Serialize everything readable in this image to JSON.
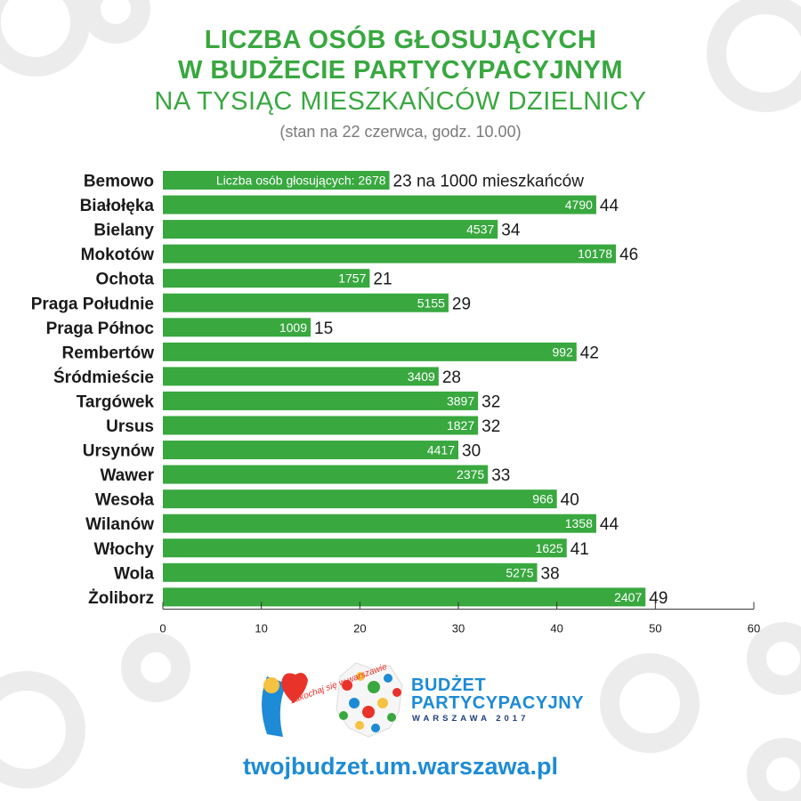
{
  "title": {
    "line1": "LICZBA OSÓB GŁOSUJĄCYCH",
    "line2": "W BUDŻECIE PARTYCYPACYJNYM",
    "line3": "NA TYSIĄC MIESZKAŃCÓW DZIELNICY",
    "subtitle": "(stan na 22 czerwca, godz. 10.00)"
  },
  "colors": {
    "bar": "#38a83f",
    "title": "#38a83f",
    "website": "#1d8bd6",
    "gear": "#eeeeee"
  },
  "chart_data": {
    "type": "bar",
    "orientation": "horizontal",
    "categories": [
      "Bemowo",
      "Białołęka",
      "Bielany",
      "Mokotów",
      "Ochota",
      "Praga Południe",
      "Praga Północ",
      "Rembertów",
      "Śródmieście",
      "Targówek",
      "Ursus",
      "Ursynów",
      "Wawer",
      "Wesoła",
      "Wilanów",
      "Włochy",
      "Wola",
      "Żoliborz"
    ],
    "values": [
      23,
      44,
      34,
      46,
      21,
      29,
      15,
      42,
      28,
      32,
      32,
      30,
      33,
      40,
      44,
      41,
      38,
      49
    ],
    "voters": [
      2678,
      4790,
      4537,
      10178,
      1757,
      5155,
      1009,
      992,
      3409,
      3897,
      1827,
      4417,
      2375,
      966,
      1358,
      1625,
      5275,
      2407
    ],
    "first_inside_label": "Liczba osób głosujących: 2678",
    "first_value_label": "23 na 1000 mieszkańców",
    "xlim": [
      0,
      60
    ],
    "xticks": [
      "0",
      "10",
      "20",
      "30",
      "40",
      "50",
      "60"
    ],
    "grid": false
  },
  "logos": {
    "left_text": "zakochaj się w warszawie",
    "right_title_1": "BUDŻET",
    "right_title_2": "PARTYCYPACYJNY",
    "right_subtitle": "WARSZAWA 2017"
  },
  "footer": {
    "website": "twojbudzet.um.warszawa.pl"
  }
}
